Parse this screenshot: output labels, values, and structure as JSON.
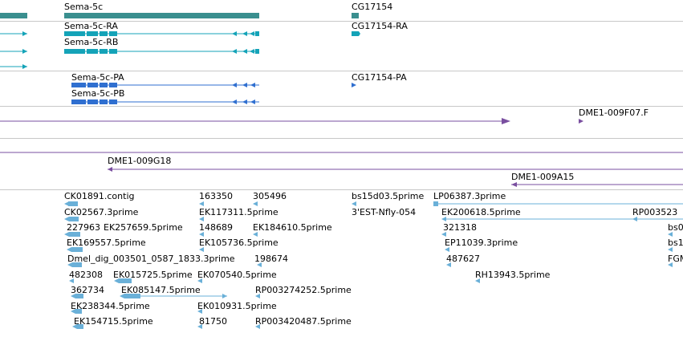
{
  "colors": {
    "gene": "#3a8f8f",
    "transcript": "#14a3b8",
    "protein": "#2f6fd0",
    "clone": "#7a4fa0",
    "est": "#6ab0d8",
    "separator": "#c8c8c8",
    "text": "#000000"
  },
  "genes": [
    {
      "label": "Sema-5c"
    },
    {
      "label": "CG17154"
    }
  ],
  "transcripts": [
    {
      "label": "Sema-5c-RA"
    },
    {
      "label": "Sema-5c-RB"
    },
    {
      "label": "CG17154-RA"
    }
  ],
  "proteins": [
    {
      "label": "Sema-5c-PA"
    },
    {
      "label": "Sema-5c-PB"
    },
    {
      "label": "CG17154-PA"
    }
  ],
  "clones": [
    {
      "label": "DME1-009F07.F"
    },
    {
      "label": "DME1-009G18"
    },
    {
      "label": "DME1-009A15"
    }
  ],
  "ests": [
    {
      "label": "CK01891.contig"
    },
    {
      "label": "163350"
    },
    {
      "label": "305496"
    },
    {
      "label": "bs15d03.5prime"
    },
    {
      "label": "LP06387.3prime"
    },
    {
      "label": "CK02567.3prime"
    },
    {
      "label": "EK117311.5prime"
    },
    {
      "label": "3'EST-Nfly-054"
    },
    {
      "label": "EK200618.5prime"
    },
    {
      "label": "RP003523"
    },
    {
      "label": "227963"
    },
    {
      "label": "EK257659.5prime"
    },
    {
      "label": "148689"
    },
    {
      "label": "EK184610.5prime"
    },
    {
      "label": "321318"
    },
    {
      "label": "bs0"
    },
    {
      "label": "EK169557.5prime"
    },
    {
      "label": "EK105736.5prime"
    },
    {
      "label": "EP11039.3prime"
    },
    {
      "label": "bs1"
    },
    {
      "label": "Dmel_dig_003501_0587_1833.3prime"
    },
    {
      "label": "198674"
    },
    {
      "label": "487627"
    },
    {
      "label": "FGM"
    },
    {
      "label": "482308"
    },
    {
      "label": "EK015725.5prime"
    },
    {
      "label": "EK070540.5prime"
    },
    {
      "label": "RH13943.5prime"
    },
    {
      "label": "362734"
    },
    {
      "label": "EK085147.5prime"
    },
    {
      "label": "RP003274252.5prime"
    },
    {
      "label": "EK238344.5prime"
    },
    {
      "label": "EK010931.5prime"
    },
    {
      "label": "EK154715.5prime"
    },
    {
      "label": "81750"
    },
    {
      "label": "RP003420487.5prime"
    }
  ]
}
